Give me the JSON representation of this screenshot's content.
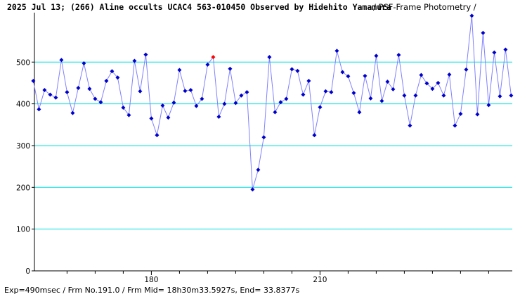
{
  "title": {
    "main": "2025 Jul 13; (266) Aline occults UCAC4 563-010450 Observed by Hidehito Yamamura",
    "method": "/ PSF-Frame Photometry /"
  },
  "footer": "Exp=490msec / Frm No.191.0 / Frm Mid= 18h30m33.5927s, End= 33.8377s",
  "colors": {
    "grid": "#00e0e0",
    "line": "#8080ff",
    "point": "#0000cc",
    "highlight": "#ff0000",
    "axis": "#000000"
  },
  "chart_data": {
    "type": "line",
    "xlim": [
      159.2,
      244.2
    ],
    "ylim": [
      0,
      615
    ],
    "ytick_values": [
      0,
      100,
      200,
      300,
      400,
      500
    ],
    "yticks": [
      "0",
      "100",
      "200",
      "300",
      "400",
      "500"
    ],
    "xtick_values": [
      180,
      210
    ],
    "xticks": [
      "180",
      "210"
    ],
    "minor_xtick_values": [
      165,
      170,
      175,
      185,
      190,
      195,
      200,
      205,
      215,
      220,
      225,
      230,
      235,
      240
    ],
    "grid": true,
    "highlight_x": 191,
    "series": [
      {
        "x": [
          159,
          160,
          161,
          162,
          163,
          164,
          165,
          166,
          167,
          168,
          169,
          170,
          171,
          172,
          173,
          174,
          175,
          176,
          177,
          178,
          179,
          180,
          181,
          182,
          183,
          184,
          185,
          186,
          187,
          188,
          189,
          190,
          191,
          192,
          193,
          194,
          195,
          196,
          197,
          198,
          199,
          200,
          201,
          202,
          203,
          204,
          205,
          206,
          207,
          208,
          209,
          210,
          211,
          212,
          213,
          214,
          215,
          216,
          217,
          218,
          219,
          220,
          221,
          222,
          223,
          224,
          225,
          226,
          227,
          228,
          229,
          230,
          231,
          232,
          233,
          234,
          235,
          236,
          237,
          238,
          239,
          240,
          241,
          242,
          243,
          244
        ],
        "y": [
          455,
          387,
          433,
          422,
          415,
          505,
          428,
          378,
          438,
          497,
          436,
          412,
          404,
          455,
          478,
          463,
          391,
          373,
          503,
          430,
          518,
          365,
          325,
          396,
          367,
          403,
          481,
          431,
          433,
          395,
          412,
          494,
          512,
          369,
          400,
          484,
          402,
          420,
          428,
          195,
          242,
          320,
          512,
          380,
          404,
          412,
          483,
          479,
          422,
          455,
          325,
          392,
          430,
          428,
          527,
          476,
          466,
          426,
          380,
          467,
          413,
          515,
          407,
          453,
          435,
          517,
          420,
          348,
          420,
          469,
          449,
          436,
          450,
          420,
          470,
          348,
          376,
          482,
          611,
          375,
          570,
          397,
          523,
          418,
          530,
          420
        ]
      }
    ]
  }
}
